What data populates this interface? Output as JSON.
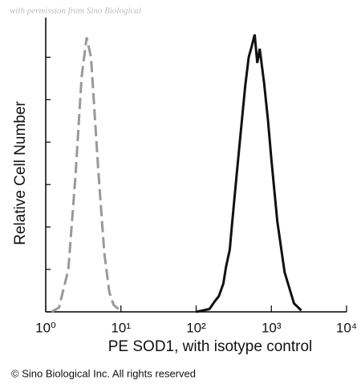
{
  "chart_data": {
    "type": "line",
    "watermark": "with permission from Sino Biological",
    "x_label": "PE SOD1, with isotype control",
    "y_label": "Relative Cell Number",
    "footer": "© Sino Biological Inc. All rights reserved",
    "x_log": true,
    "xlim": [
      1,
      10000
    ],
    "xticks": [
      {
        "value": 1,
        "label": "10⁰"
      },
      {
        "value": 10,
        "label": "10¹"
      },
      {
        "value": 100,
        "label": "10²"
      },
      {
        "value": 1000,
        "label": "10³"
      },
      {
        "value": 10000,
        "label": "10⁴"
      }
    ],
    "ylim": [
      0,
      104
    ],
    "yticks": [
      0,
      15,
      30,
      45,
      60,
      75,
      90
    ],
    "series": [
      {
        "color": "#999999",
        "dashed": true,
        "x": [
          1.2,
          1.5,
          2,
          2.5,
          3,
          3.5,
          4,
          5,
          6,
          7,
          8,
          10
        ],
        "values": [
          0,
          1.5,
          15,
          49,
          83,
          97,
          90,
          50,
          21,
          7,
          2.4,
          0.3
        ]
      },
      {
        "color": "#111111",
        "dashed": false,
        "x": [
          100,
          150,
          180,
          200,
          230,
          250,
          280,
          300,
          350,
          400,
          450,
          500,
          550,
          600,
          650,
          700,
          800,
          900,
          1000,
          1200,
          1500,
          2000,
          2500
        ],
        "values": [
          0,
          1,
          4,
          5.5,
          10,
          16,
          22,
          31,
          50,
          66,
          80,
          90,
          94,
          98,
          88,
          93,
          81,
          68,
          54,
          32,
          14,
          3,
          0.5
        ]
      }
    ]
  }
}
